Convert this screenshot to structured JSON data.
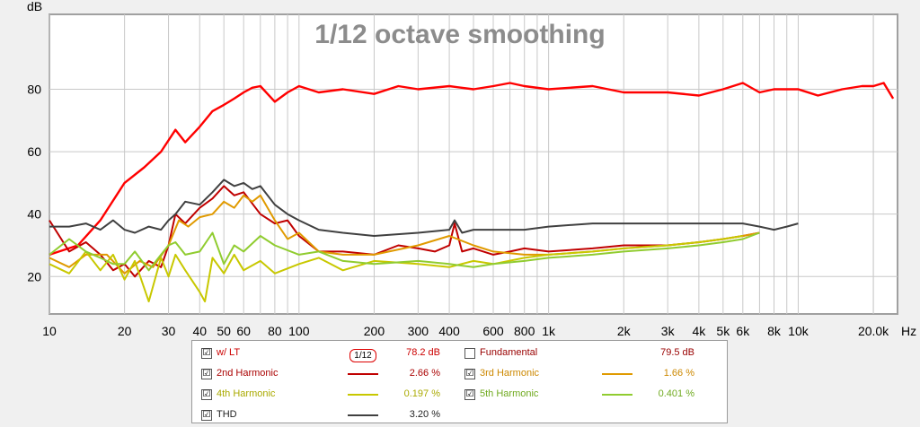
{
  "chart_data": {
    "type": "line",
    "title": "1/12 octave smoothing",
    "ylabel": "dB",
    "xunit": "Hz",
    "xscale": "log",
    "xlim": [
      10,
      25000
    ],
    "ylim": [
      8,
      104
    ],
    "grid": true,
    "xticks": [
      {
        "v": 10,
        "label": "10"
      },
      {
        "v": 20,
        "label": "20"
      },
      {
        "v": 30,
        "label": "30"
      },
      {
        "v": 40,
        "label": "40"
      },
      {
        "v": 50,
        "label": "50"
      },
      {
        "v": 60,
        "label": "60"
      },
      {
        "v": 80,
        "label": "80"
      },
      {
        "v": 100,
        "label": "100"
      },
      {
        "v": 200,
        "label": "200"
      },
      {
        "v": 300,
        "label": "300"
      },
      {
        "v": 400,
        "label": "400"
      },
      {
        "v": 600,
        "label": "600"
      },
      {
        "v": 800,
        "label": "800"
      },
      {
        "v": 1000,
        "label": "1k"
      },
      {
        "v": 2000,
        "label": "2k"
      },
      {
        "v": 3000,
        "label": "3k"
      },
      {
        "v": 4000,
        "label": "4k"
      },
      {
        "v": 5000,
        "label": "5k"
      },
      {
        "v": 6000,
        "label": "6k"
      },
      {
        "v": 8000,
        "label": "8k"
      },
      {
        "v": 10000,
        "label": "10k"
      },
      {
        "v": 20000,
        "label": "20.0k"
      }
    ],
    "yticks": [
      20,
      40,
      60,
      80
    ],
    "series": [
      {
        "name": "w/ LT",
        "color": "#ff0000",
        "x": [
          10,
          13,
          16,
          20,
          24,
          28,
          32,
          35,
          40,
          45,
          50,
          55,
          60,
          65,
          70,
          80,
          90,
          100,
          120,
          150,
          200,
          250,
          300,
          400,
          500,
          600,
          700,
          800,
          1000,
          1500,
          2000,
          3000,
          4000,
          5000,
          6000,
          7000,
          8000,
          10000,
          12000,
          15000,
          18000,
          20000,
          22000,
          24000
        ],
        "y": [
          27,
          30,
          38,
          50,
          55,
          60,
          67,
          63,
          68,
          73,
          75,
          77,
          79,
          80.5,
          81,
          76,
          79,
          81,
          79,
          80,
          78.5,
          81,
          80,
          81,
          80,
          81,
          82,
          81,
          80,
          81,
          79,
          79,
          78,
          80,
          82,
          79,
          80,
          80,
          78,
          80,
          81,
          81,
          82,
          77
        ]
      },
      {
        "name": "2nd Harmonic",
        "color": "#c00000",
        "x": [
          10,
          12,
          14,
          16,
          18,
          20,
          22,
          25,
          28,
          30,
          32,
          35,
          40,
          45,
          50,
          55,
          60,
          70,
          80,
          90,
          100,
          120,
          150,
          200,
          250,
          300,
          350,
          400,
          420,
          450,
          500,
          600,
          700,
          800,
          1000,
          1500,
          2000,
          3000,
          4000,
          5000,
          6000,
          7000
        ],
        "y": [
          38,
          28,
          31,
          27,
          22,
          24,
          20,
          25,
          23,
          30,
          40,
          37,
          42,
          45,
          49,
          46,
          47,
          40,
          37,
          38,
          33,
          28,
          28,
          27,
          30,
          29,
          28,
          30,
          37,
          28,
          29,
          27,
          28,
          29,
          28,
          29,
          30,
          30,
          31,
          32,
          33,
          34
        ]
      },
      {
        "name": "3rd Harmonic",
        "color": "#e09a00",
        "x": [
          10,
          12,
          14,
          17,
          20,
          23,
          26,
          30,
          33,
          36,
          40,
          45,
          50,
          55,
          60,
          65,
          70,
          80,
          90,
          100,
          120,
          150,
          200,
          300,
          400,
          500,
          600,
          800,
          1000,
          1500,
          2000,
          3000,
          4000,
          5000,
          6000,
          7000
        ],
        "y": [
          26,
          23,
          27,
          27,
          21,
          25,
          23,
          30,
          38,
          36,
          39,
          40,
          44,
          42,
          46,
          44,
          46,
          38,
          32,
          34,
          28,
          27,
          27,
          30,
          33,
          30,
          28,
          27,
          27,
          28,
          29,
          30,
          31,
          32,
          33,
          34
        ]
      },
      {
        "name": "4th Harmonic",
        "color": "#c8c800",
        "x": [
          10,
          12,
          14,
          16,
          18,
          20,
          22,
          25,
          28,
          30,
          32,
          35,
          40,
          42,
          45,
          50,
          55,
          60,
          70,
          80,
          100,
          120,
          150,
          200,
          300,
          400,
          500,
          600,
          800,
          1000,
          1500,
          2000,
          3000,
          4000,
          5000,
          6000
        ],
        "y": [
          24,
          21,
          28,
          22,
          27,
          19,
          25,
          12,
          26,
          20,
          27,
          22,
          15,
          12,
          26,
          21,
          27,
          22,
          25,
          21,
          24,
          26,
          22,
          25,
          24,
          23,
          25,
          24,
          26,
          27,
          28,
          29,
          30,
          31,
          32,
          33
        ]
      },
      {
        "name": "5th Harmonic",
        "color": "#90cc30",
        "x": [
          10,
          12,
          14,
          16,
          18,
          20,
          22,
          25,
          28,
          30,
          32,
          35,
          40,
          45,
          50,
          55,
          60,
          70,
          80,
          100,
          120,
          150,
          200,
          300,
          400,
          500,
          600,
          800,
          1000,
          1500,
          2000,
          3000,
          4000,
          5000,
          6000,
          7000
        ],
        "y": [
          27,
          32,
          28,
          26,
          24,
          24,
          28,
          22,
          27,
          30,
          31,
          27,
          28,
          34,
          24,
          30,
          28,
          33,
          30,
          27,
          28,
          25,
          24,
          25,
          24,
          23,
          24,
          25,
          26,
          27,
          28,
          29,
          30,
          31,
          32,
          34
        ]
      },
      {
        "name": "THD",
        "color": "#404040",
        "x": [
          10,
          12,
          14,
          16,
          18,
          20,
          22,
          25,
          28,
          30,
          32,
          35,
          40,
          45,
          50,
          55,
          60,
          65,
          70,
          80,
          90,
          100,
          120,
          150,
          200,
          300,
          400,
          420,
          450,
          500,
          600,
          800,
          1000,
          1500,
          2000,
          3000,
          4000,
          5000,
          6000,
          7000,
          8000,
          9000,
          10000
        ],
        "y": [
          36,
          36,
          37,
          35,
          38,
          35,
          34,
          36,
          35,
          38,
          40,
          44,
          43,
          47,
          51,
          49,
          50,
          48,
          49,
          43,
          40,
          38,
          35,
          34,
          33,
          34,
          35,
          38,
          34,
          35,
          35,
          35,
          36,
          37,
          37,
          37,
          37,
          37,
          37,
          36,
          35,
          36,
          37
        ]
      }
    ]
  },
  "legend": {
    "w_lt": {
      "label": "w/ LT",
      "checked": "☑",
      "smoothing": "1/12",
      "value": "78.2 dB",
      "color": "#ff0000"
    },
    "fundamental": {
      "label": "Fundamental",
      "checked": "",
      "value": "79.5 dB",
      "color": "#990000"
    },
    "h2": {
      "label": "2nd Harmonic",
      "checked": "☑",
      "value": "2.66 %",
      "color": "#c00000"
    },
    "h3": {
      "label": "3rd Harmonic",
      "checked": "☑",
      "value": "1.66 %",
      "color": "#e09a00"
    },
    "h4": {
      "label": "4th Harmonic",
      "checked": "☑",
      "value": "0.197 %",
      "color": "#c8c800"
    },
    "h5": {
      "label": "5th Harmonic",
      "checked": "☑",
      "value": "0.401 %",
      "color": "#90cc30"
    },
    "thd": {
      "label": "THD",
      "checked": "☑",
      "value": "3.20 %",
      "color": "#404040"
    }
  }
}
